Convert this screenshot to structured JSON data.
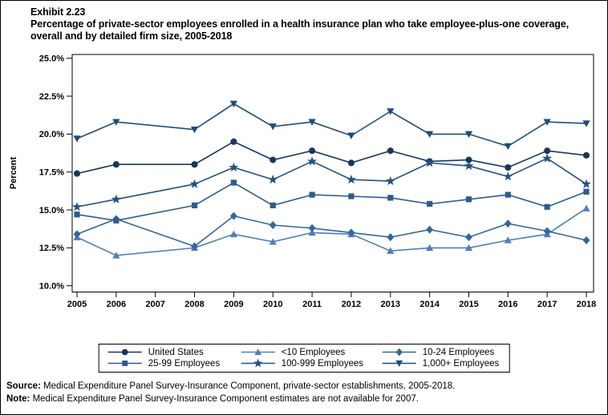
{
  "header": {
    "exhibit": "Exhibit 2.23",
    "title": "Percentage of private-sector employees enrolled in a health insurance plan who take employee-plus-one coverage, overall and by detailed firm size, 2005-2018"
  },
  "chart_data": {
    "type": "line",
    "title": "Percentage of private-sector employees enrolled in a health insurance plan who take employee-plus-one coverage, overall and by detailed firm size, 2005-2018",
    "xlabel": "",
    "ylabel": "Percent",
    "ylim": [
      10,
      25
    ],
    "ytick_labels": [
      "10.0%",
      "12.5%",
      "15.0%",
      "17.5%",
      "20.0%",
      "22.5%",
      "25.0%"
    ],
    "grid": false,
    "legend_position": "bottom",
    "x": [
      2005,
      2006,
      2007,
      2008,
      2009,
      2010,
      2011,
      2012,
      2013,
      2014,
      2015,
      2016,
      2017,
      2018
    ],
    "note": "No data for 2007; lines connect 2006 to 2008",
    "series": [
      {
        "name": "United States",
        "marker": "circle",
        "color": "#17375D",
        "values": [
          17.4,
          18.0,
          null,
          18.0,
          19.5,
          18.3,
          18.9,
          18.1,
          18.9,
          18.2,
          18.3,
          17.8,
          18.9,
          18.6
        ]
      },
      {
        "name": "<10 Employees",
        "marker": "triangle-up",
        "color": "#4E80B5",
        "values": [
          13.2,
          12.0,
          null,
          12.5,
          13.4,
          12.9,
          13.5,
          13.4,
          12.3,
          12.5,
          12.5,
          13.0,
          13.4,
          15.1
        ]
      },
      {
        "name": "10-24 Employees",
        "marker": "diamond",
        "color": "#33679B",
        "values": [
          13.4,
          14.4,
          null,
          12.6,
          14.6,
          14.0,
          13.8,
          13.5,
          13.2,
          13.7,
          13.2,
          14.1,
          13.6,
          13.0
        ]
      },
      {
        "name": "25-99 Employees",
        "marker": "square",
        "color": "#2D5C8C",
        "values": [
          14.7,
          14.3,
          null,
          15.3,
          16.8,
          15.3,
          16.0,
          15.9,
          15.8,
          15.4,
          15.7,
          16.0,
          15.2,
          16.2
        ]
      },
      {
        "name": "100-999 Employees",
        "marker": "star",
        "color": "#25527F",
        "values": [
          15.2,
          15.7,
          null,
          16.7,
          17.8,
          17.0,
          18.2,
          17.0,
          16.9,
          18.1,
          17.9,
          17.2,
          18.4,
          16.7
        ]
      },
      {
        "name": "1,000+ Employees",
        "marker": "triangle-down",
        "color": "#1F4C78",
        "values": [
          19.7,
          20.8,
          null,
          20.3,
          22.0,
          20.5,
          20.8,
          19.9,
          21.5,
          20.0,
          20.0,
          19.2,
          20.8,
          20.7
        ]
      }
    ]
  },
  "footer": {
    "source_label": "Source:",
    "source_text": " Medical Expenditure Panel Survey-Insurance Component, private-sector establishments, 2005-2018.",
    "note_label": "Note:",
    "note_text": " Medical Expenditure Panel Survey-Insurance Component estimates are not available for 2007."
  }
}
